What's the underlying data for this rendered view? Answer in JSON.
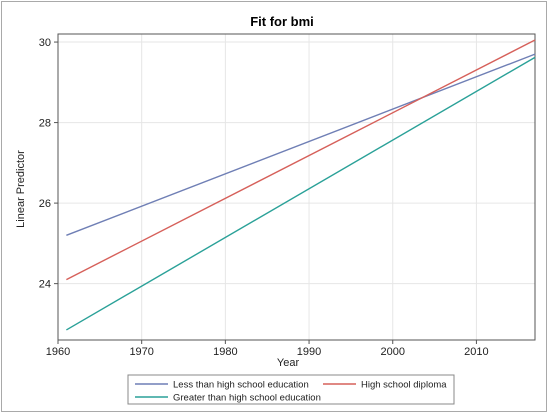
{
  "chart_data": {
    "type": "line",
    "title": "Fit for bmi",
    "xlabel": "Year",
    "ylabel": "Linear Predictor",
    "xlim": [
      1960,
      2017
    ],
    "ylim": [
      22.6,
      30.2
    ],
    "xticks": [
      1960,
      1970,
      1980,
      1990,
      2000,
      2010
    ],
    "yticks": [
      24,
      26,
      28,
      30
    ],
    "grid": true,
    "legend_position": "bottom",
    "series": [
      {
        "name": "Less than high school education",
        "color": "#6f7fb5",
        "x": [
          1961,
          2017
        ],
        "y": [
          25.2,
          29.7
        ]
      },
      {
        "name": "High school diploma",
        "color": "#d6605a",
        "x": [
          1961,
          2017
        ],
        "y": [
          24.1,
          30.05
        ]
      },
      {
        "name": "Greater than high school education",
        "color": "#2aa198",
        "x": [
          1961,
          2017
        ],
        "y": [
          22.85,
          29.62
        ]
      }
    ]
  }
}
